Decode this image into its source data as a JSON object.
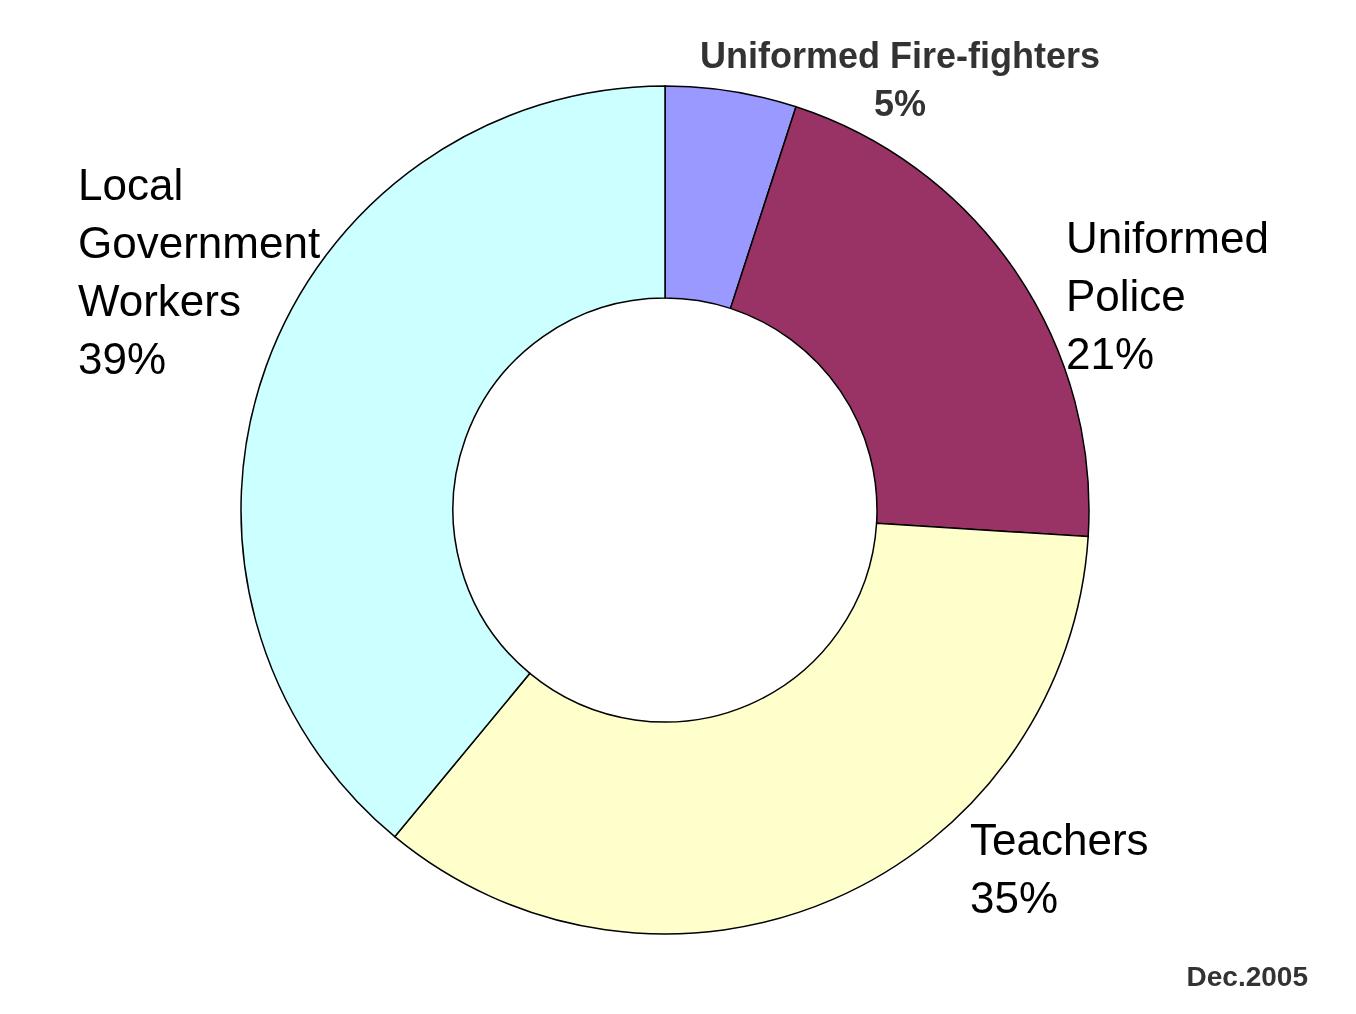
{
  "chart_data": {
    "type": "donut",
    "categories": [
      "Uniformed Fire-fighters",
      "Uniformed Police",
      "Teachers",
      "Local Government Workers"
    ],
    "values": [
      5,
      21,
      35,
      39
    ],
    "value_labels": [
      "5%",
      "21%",
      "35%",
      "39%"
    ],
    "colors": [
      "#9999ff",
      "#993366",
      "#ffffcc",
      "#ccffff"
    ],
    "annotations": [
      "Dec.2005"
    ]
  }
}
